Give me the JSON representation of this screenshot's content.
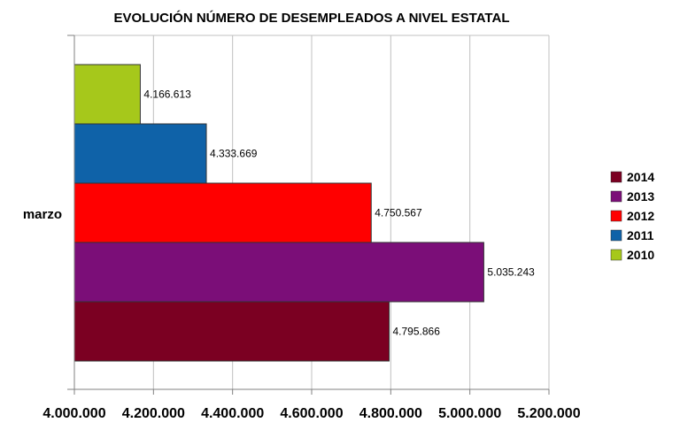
{
  "chart_data": {
    "type": "bar",
    "orientation": "horizontal",
    "title": "EVOLUCIÓN NÚMERO DE DESEMPLEADOS A NIVEL ESTATAL",
    "categories": [
      "marzo"
    ],
    "series": [
      {
        "name": "2010",
        "values": [
          4166613
        ],
        "label": "4.166.613",
        "color": "#a6c81b"
      },
      {
        "name": "2011",
        "values": [
          4333669
        ],
        "label": "4.333.669",
        "color": "#0f62a8"
      },
      {
        "name": "2012",
        "values": [
          4750567
        ],
        "label": "4.750.567",
        "color": "#ff0000"
      },
      {
        "name": "2013",
        "values": [
          5035243
        ],
        "label": "5.035.243",
        "color": "#7b0e78"
      },
      {
        "name": "2014",
        "values": [
          4795866
        ],
        "label": "4.795.866",
        "color": "#7b0022"
      }
    ],
    "xlim": [
      4000000,
      5200000
    ],
    "x_ticks": [
      4000000,
      4200000,
      4400000,
      4600000,
      4800000,
      5000000,
      5200000
    ],
    "x_tick_labels": [
      "4.000.000",
      "4.200.000",
      "4.400.000",
      "4.600.000",
      "4.800.000",
      "5.000.000",
      "5.200.000"
    ],
    "grid": true,
    "legend_placement": "right",
    "legend_order": [
      "2014",
      "2013",
      "2012",
      "2011",
      "2010"
    ]
  }
}
